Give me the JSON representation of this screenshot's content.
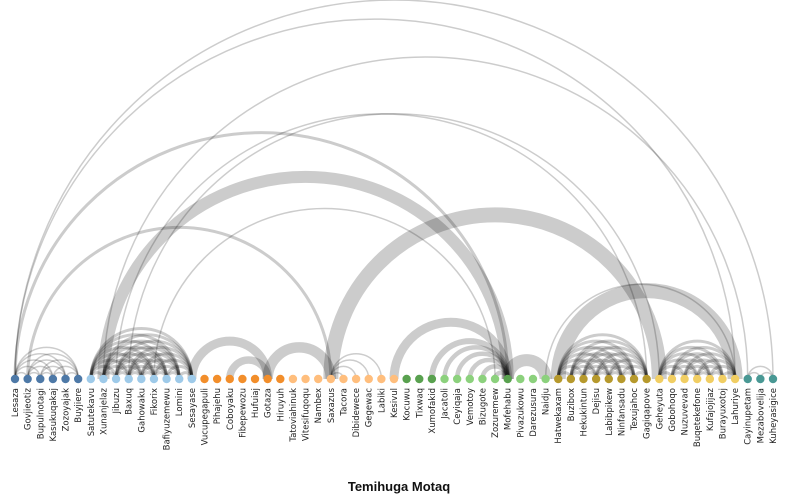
{
  "title": "Temihuga Motaq",
  "groups": [
    {
      "id": 1,
      "color": "#4e79a7"
    },
    {
      "id": 2,
      "color": "#9ecae9"
    },
    {
      "id": 3,
      "color": "#f28e2b"
    },
    {
      "id": 4,
      "color": "#ffbe7d"
    },
    {
      "id": 5,
      "color": "#59a14f"
    },
    {
      "id": 6,
      "color": "#8cd17d"
    },
    {
      "id": 7,
      "color": "#b6992d"
    },
    {
      "id": 8,
      "color": "#f1ce63"
    },
    {
      "id": 9,
      "color": "#499894"
    }
  ],
  "nodes": [
    {
      "name": "Lesaza",
      "group": 1
    },
    {
      "name": "Govjieotiz",
      "group": 1
    },
    {
      "name": "Bupulnotagi",
      "group": 1
    },
    {
      "name": "Kasukuqakaj",
      "group": 1
    },
    {
      "name": "Zozoyajak",
      "group": 1
    },
    {
      "name": "Buyjiere",
      "group": 1
    },
    {
      "name": "Satutekavu",
      "group": 2
    },
    {
      "name": "Xunanjelaz",
      "group": 2
    },
    {
      "name": "Jibuzu",
      "group": 2
    },
    {
      "name": "Baxuq",
      "group": 2
    },
    {
      "name": "Gahowaku",
      "group": 2
    },
    {
      "name": "Fikorix",
      "group": 2
    },
    {
      "name": "Bafiyuzemewu",
      "group": 2
    },
    {
      "name": "Lomini",
      "group": 2
    },
    {
      "name": "Sesayase",
      "group": 2
    },
    {
      "name": "Vucupegapuli",
      "group": 3
    },
    {
      "name": "Pihajehu",
      "group": 3
    },
    {
      "name": "Coboyaku",
      "group": 3
    },
    {
      "name": "Fibepewozu",
      "group": 3
    },
    {
      "name": "Hufuiaj",
      "group": 3
    },
    {
      "name": "Gotaza",
      "group": 3
    },
    {
      "name": "Hiruyuh",
      "group": 3
    },
    {
      "name": "Tatoviahinuk",
      "group": 4
    },
    {
      "name": "Vitesifuqoqu",
      "group": 4
    },
    {
      "name": "Nambex",
      "group": 4
    },
    {
      "name": "Saxazus",
      "group": 4
    },
    {
      "name": "Tacora",
      "group": 4
    },
    {
      "name": "Dibidewece",
      "group": 4
    },
    {
      "name": "Gegewac",
      "group": 4
    },
    {
      "name": "Labiki",
      "group": 4
    },
    {
      "name": "Kesivul",
      "group": 4
    },
    {
      "name": "Kocuwu",
      "group": 5
    },
    {
      "name": "Tixwaq",
      "group": 5
    },
    {
      "name": "Xumofakid",
      "group": 5
    },
    {
      "name": "Jacatoli",
      "group": 6
    },
    {
      "name": "Ceyiqaja",
      "group": 6
    },
    {
      "name": "Vemotoy",
      "group": 6
    },
    {
      "name": "Bizugote",
      "group": 6
    },
    {
      "name": "Zozuremew",
      "group": 6
    },
    {
      "name": "Mofehabu",
      "group": 5
    },
    {
      "name": "Pivazukowu",
      "group": 6
    },
    {
      "name": "Darezusura",
      "group": 6
    },
    {
      "name": "Naidju",
      "group": 6
    },
    {
      "name": "Hatwekaxam",
      "group": 7
    },
    {
      "name": "Buzibox",
      "group": 7
    },
    {
      "name": "Hekukintun",
      "group": 7
    },
    {
      "name": "Dejisu",
      "group": 7
    },
    {
      "name": "Labibpikew",
      "group": 7
    },
    {
      "name": "Ninfansadu",
      "group": 7
    },
    {
      "name": "Texujahoc",
      "group": 7
    },
    {
      "name": "Gagiqapove",
      "group": 7
    },
    {
      "name": "Geheyuta",
      "group": 8
    },
    {
      "name": "Gobohoqo",
      "group": 8
    },
    {
      "name": "Nuzuvevad",
      "group": 8
    },
    {
      "name": "Buqetekefone",
      "group": 8
    },
    {
      "name": "Kufajojijaz",
      "group": 8
    },
    {
      "name": "Burayuxotoj",
      "group": 8
    },
    {
      "name": "Lahuriye",
      "group": 8
    },
    {
      "name": "Cayinupetam",
      "group": 9
    },
    {
      "name": "Mezabovelija",
      "group": 9
    },
    {
      "name": "Kuheyasigice",
      "group": 9
    }
  ],
  "links": [
    [
      0,
      1,
      1
    ],
    [
      0,
      2,
      1
    ],
    [
      0,
      3,
      1
    ],
    [
      0,
      4,
      1
    ],
    [
      0,
      5,
      1
    ],
    [
      1,
      2,
      1
    ],
    [
      1,
      3,
      1
    ],
    [
      1,
      4,
      1
    ],
    [
      1,
      5,
      1
    ],
    [
      2,
      3,
      1
    ],
    [
      2,
      4,
      1
    ],
    [
      2,
      5,
      1
    ],
    [
      3,
      4,
      1
    ],
    [
      3,
      5,
      1
    ],
    [
      4,
      5,
      1
    ],
    [
      0,
      57,
      1
    ],
    [
      0,
      60,
      1
    ],
    [
      0,
      39,
      2
    ],
    [
      1,
      25,
      2
    ],
    [
      6,
      7,
      2
    ],
    [
      6,
      8,
      2
    ],
    [
      6,
      9,
      2
    ],
    [
      6,
      10,
      2
    ],
    [
      6,
      11,
      2
    ],
    [
      6,
      12,
      2
    ],
    [
      6,
      13,
      2
    ],
    [
      6,
      14,
      2
    ],
    [
      7,
      8,
      2
    ],
    [
      7,
      9,
      2
    ],
    [
      7,
      10,
      2
    ],
    [
      7,
      11,
      2
    ],
    [
      7,
      12,
      2
    ],
    [
      7,
      13,
      2
    ],
    [
      7,
      14,
      2
    ],
    [
      8,
      9,
      2
    ],
    [
      8,
      10,
      2
    ],
    [
      8,
      11,
      2
    ],
    [
      8,
      12,
      2
    ],
    [
      8,
      13,
      2
    ],
    [
      8,
      14,
      2
    ],
    [
      9,
      10,
      2
    ],
    [
      9,
      11,
      2
    ],
    [
      9,
      12,
      2
    ],
    [
      9,
      13,
      2
    ],
    [
      9,
      14,
      2
    ],
    [
      10,
      11,
      2
    ],
    [
      10,
      12,
      2
    ],
    [
      10,
      13,
      2
    ],
    [
      10,
      14,
      2
    ],
    [
      11,
      12,
      2
    ],
    [
      11,
      13,
      2
    ],
    [
      11,
      14,
      2
    ],
    [
      12,
      13,
      2
    ],
    [
      12,
      14,
      2
    ],
    [
      13,
      14,
      2
    ],
    [
      7,
      39,
      8
    ],
    [
      8,
      50,
      1
    ],
    [
      7,
      58,
      1
    ],
    [
      9,
      51,
      1
    ],
    [
      11,
      38,
      1
    ],
    [
      14,
      20,
      6
    ],
    [
      17,
      20,
      5
    ],
    [
      20,
      25,
      7
    ],
    [
      25,
      26,
      1
    ],
    [
      25,
      27,
      1
    ],
    [
      25,
      28,
      1
    ],
    [
      25,
      29,
      1
    ],
    [
      25,
      51,
      10
    ],
    [
      30,
      39,
      6
    ],
    [
      33,
      39,
      4
    ],
    [
      34,
      39,
      3
    ],
    [
      35,
      39,
      3
    ],
    [
      36,
      39,
      3
    ],
    [
      37,
      39,
      3
    ],
    [
      38,
      39,
      3
    ],
    [
      39,
      42,
      8
    ],
    [
      43,
      44,
      2
    ],
    [
      43,
      45,
      2
    ],
    [
      43,
      46,
      2
    ],
    [
      43,
      47,
      2
    ],
    [
      43,
      48,
      2
    ],
    [
      43,
      49,
      2
    ],
    [
      43,
      50,
      2
    ],
    [
      44,
      45,
      2
    ],
    [
      44,
      46,
      2
    ],
    [
      44,
      47,
      2
    ],
    [
      44,
      48,
      2
    ],
    [
      44,
      49,
      2
    ],
    [
      44,
      50,
      2
    ],
    [
      45,
      46,
      2
    ],
    [
      45,
      47,
      2
    ],
    [
      45,
      48,
      2
    ],
    [
      45,
      49,
      2
    ],
    [
      45,
      50,
      2
    ],
    [
      46,
      47,
      2
    ],
    [
      46,
      48,
      2
    ],
    [
      46,
      49,
      2
    ],
    [
      46,
      50,
      2
    ],
    [
      47,
      48,
      2
    ],
    [
      47,
      49,
      2
    ],
    [
      47,
      50,
      2
    ],
    [
      48,
      49,
      2
    ],
    [
      48,
      50,
      2
    ],
    [
      49,
      50,
      2
    ],
    [
      51,
      52,
      2
    ],
    [
      51,
      53,
      2
    ],
    [
      51,
      54,
      2
    ],
    [
      51,
      55,
      2
    ],
    [
      51,
      56,
      2
    ],
    [
      51,
      57,
      2
    ],
    [
      52,
      53,
      2
    ],
    [
      52,
      54,
      2
    ],
    [
      52,
      55,
      2
    ],
    [
      52,
      56,
      2
    ],
    [
      52,
      57,
      2
    ],
    [
      53,
      54,
      2
    ],
    [
      53,
      55,
      2
    ],
    [
      53,
      56,
      2
    ],
    [
      53,
      57,
      2
    ],
    [
      54,
      55,
      2
    ],
    [
      54,
      56,
      2
    ],
    [
      54,
      57,
      2
    ],
    [
      55,
      56,
      2
    ],
    [
      55,
      57,
      2
    ],
    [
      56,
      57,
      2
    ],
    [
      43,
      57,
      10
    ],
    [
      58,
      59,
      1
    ],
    [
      58,
      60,
      1
    ],
    [
      59,
      60,
      1
    ],
    [
      42,
      57,
      1
    ]
  ]
}
